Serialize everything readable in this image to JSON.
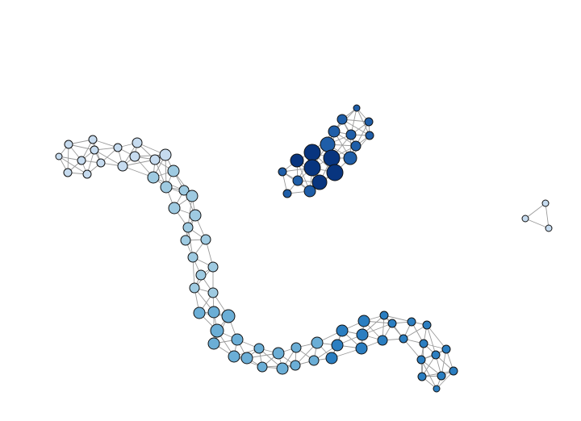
{
  "network": {
    "clusters": [
      {
        "id": "A",
        "name": "",
        "fill": "#c6dbef"
      },
      {
        "id": "B",
        "name": "",
        "fill": "#9ecae1"
      },
      {
        "id": "C",
        "name": "",
        "fill": "#6baed6"
      },
      {
        "id": "D",
        "name": "",
        "fill": "#2b7ec1"
      },
      {
        "id": "E",
        "name": "",
        "fill": "#1f5ea8"
      },
      {
        "id": "F",
        "name": "",
        "fill": "#08357f"
      }
    ],
    "node_count": 96,
    "legend_visible": false,
    "axes_visible": false
  }
}
